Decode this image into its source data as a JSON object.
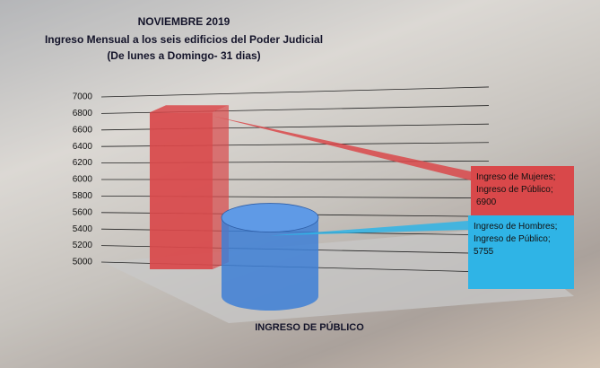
{
  "chart_data": {
    "type": "bar3d",
    "title": "NOVIEMBRE 2019",
    "subtitle": "Ingreso Mensual a los seis edificios del Poder Judicial",
    "subtitle2": "(De lunes a Domingo- 31 dias)",
    "categories": [
      "INGRESO DE PÚBLICO"
    ],
    "series": [
      {
        "color": "#d9484a",
        "shape": "box",
        "values": [
          6900
        ],
        "value_labels": [
          "Ingreso de Mujeres; Ingreso de Público; 6900"
        ]
      },
      {
        "color": "#3d7fd6",
        "shape": "cylinder",
        "values": [
          5755
        ],
        "value_labels": [
          "Ingreso  de Hombres; Ingreso de Público; 5755"
        ]
      }
    ],
    "ylim": [
      5000,
      7000
    ],
    "yticks": [
      5000,
      5200,
      5400,
      5600,
      5800,
      6000,
      6200,
      6400,
      6600,
      6800,
      7000
    ],
    "grid": true
  }
}
